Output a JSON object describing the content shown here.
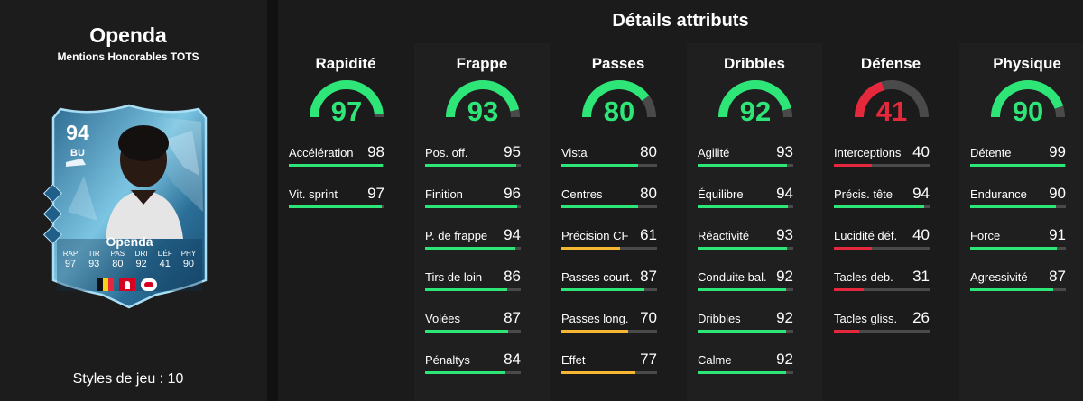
{
  "player": {
    "name": "Openda",
    "subtitle": "Mentions Honorables TOTS",
    "styles_text": "Styles de jeu : 10"
  },
  "card": {
    "rating": "94",
    "position": "BU",
    "name": "Openda",
    "stats": [
      {
        "label": "RAP",
        "value": "97"
      },
      {
        "label": "TIR",
        "value": "93"
      },
      {
        "label": "PAS",
        "value": "80"
      },
      {
        "label": "DRI",
        "value": "92"
      },
      {
        "label": "DÉF",
        "value": "41"
      },
      {
        "label": "PHY",
        "value": "90"
      }
    ],
    "flags": [
      "belgium-flag",
      "bundesliga-logo",
      "leipzig-crest"
    ]
  },
  "details": {
    "title": "Détails attributs",
    "columns": [
      {
        "title": "Rapidité",
        "value": 97,
        "stats": [
          {
            "label": "Accélération",
            "value": 98
          },
          {
            "label": "Vit. sprint",
            "value": 97
          }
        ]
      },
      {
        "title": "Frappe",
        "value": 93,
        "stats": [
          {
            "label": "Pos. off.",
            "value": 95
          },
          {
            "label": "Finition",
            "value": 96
          },
          {
            "label": "P. de frappe",
            "value": 94
          },
          {
            "label": "Tirs de loin",
            "value": 86
          },
          {
            "label": "Volées",
            "value": 87
          },
          {
            "label": "Pénaltys",
            "value": 84
          }
        ]
      },
      {
        "title": "Passes",
        "value": 80,
        "stats": [
          {
            "label": "Vista",
            "value": 80
          },
          {
            "label": "Centres",
            "value": 80
          },
          {
            "label": "Précision CF",
            "value": 61
          },
          {
            "label": "Passes court.",
            "value": 87
          },
          {
            "label": "Passes long.",
            "value": 70
          },
          {
            "label": "Effet",
            "value": 77
          }
        ]
      },
      {
        "title": "Dribbles",
        "value": 92,
        "stats": [
          {
            "label": "Agilité",
            "value": 93
          },
          {
            "label": "Équilibre",
            "value": 94
          },
          {
            "label": "Réactivité",
            "value": 93
          },
          {
            "label": "Conduite bal.",
            "value": 92
          },
          {
            "label": "Dribbles",
            "value": 92
          },
          {
            "label": "Calme",
            "value": 92
          }
        ]
      },
      {
        "title": "Défense",
        "value": 41,
        "stats": [
          {
            "label": "Interceptions",
            "value": 40
          },
          {
            "label": "Précis. tête",
            "value": 94
          },
          {
            "label": "Lucidité déf.",
            "value": 40
          },
          {
            "label": "Tacles deb.",
            "value": 31
          },
          {
            "label": "Tacles gliss.",
            "value": 26
          }
        ]
      },
      {
        "title": "Physique",
        "value": 90,
        "stats": [
          {
            "label": "Détente",
            "value": 99
          },
          {
            "label": "Endurance",
            "value": 90
          },
          {
            "label": "Force",
            "value": 91
          },
          {
            "label": "Agressivité",
            "value": 87
          }
        ]
      }
    ]
  },
  "colors": {
    "green": "#2ee577",
    "yellow": "#f5b731",
    "red": "#e5283c",
    "track": "#4a4a4a"
  }
}
